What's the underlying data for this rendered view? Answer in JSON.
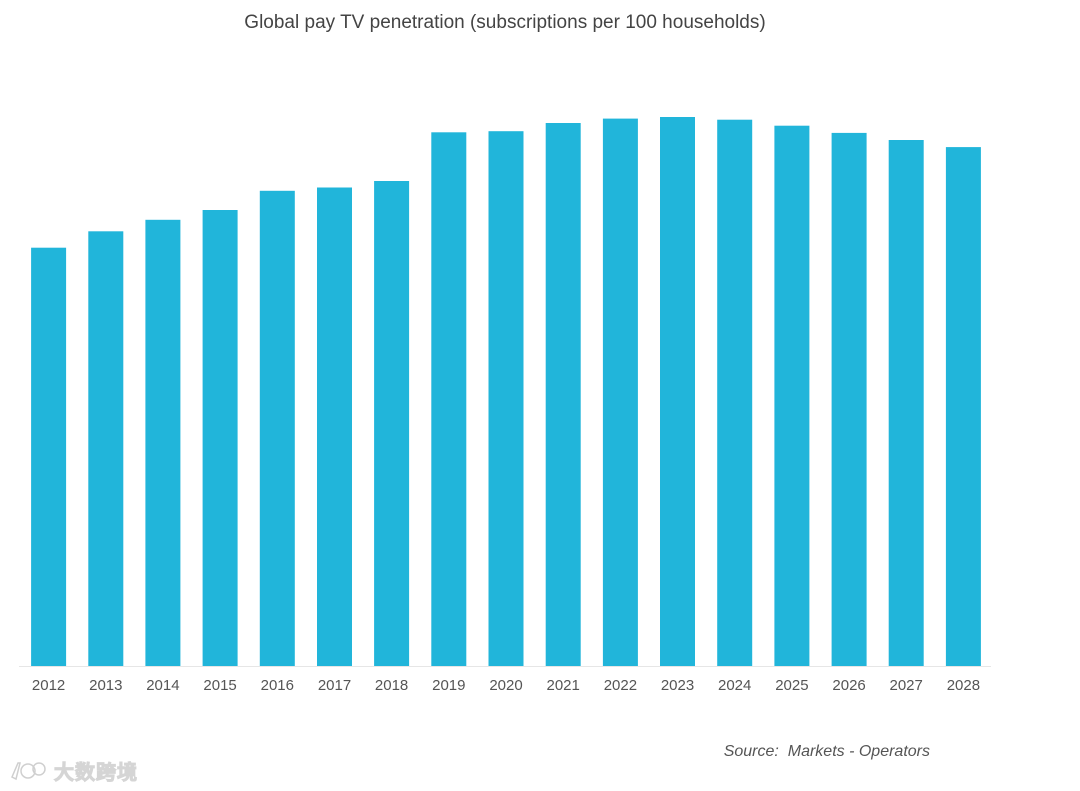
{
  "chart_data": {
    "type": "bar",
    "title": "Global pay TV penetration (subscriptions per 100 households)",
    "xlabel": "",
    "ylabel": "",
    "categories": [
      "2012",
      "2013",
      "2014",
      "2015",
      "2016",
      "2017",
      "2018",
      "2019",
      "2020",
      "2021",
      "2022",
      "2023",
      "2024",
      "2025",
      "2026",
      "2027",
      "2028"
    ],
    "values": [
      76.5,
      79.5,
      81.6,
      83.4,
      86.9,
      87.5,
      88.7,
      97.6,
      97.8,
      99.3,
      100.1,
      100.4,
      99.9,
      98.8,
      97.5,
      96.2,
      94.9
    ],
    "ylim": [
      0,
      100.4
    ],
    "grid": false,
    "legend": "none",
    "bar_color": "#21B5DA",
    "axis_color": "#E6E6E6",
    "source": "Source:  Markets - Operators"
  },
  "watermark": {
    "text": "大数跨境",
    "logo": "1c-logo-icon"
  }
}
